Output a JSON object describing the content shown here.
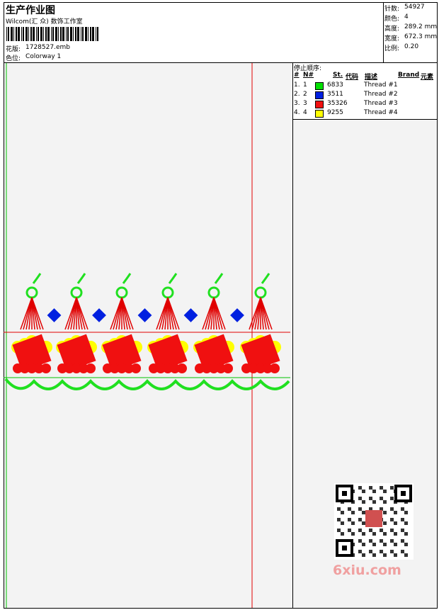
{
  "header": {
    "title": "生产作业图",
    "studio": "Wilcom(汇 众) 数饰工作室",
    "design_label": "花版:",
    "design_file": "1728527.emb",
    "colorway_label": "色位:",
    "colorway": "Colorway 1"
  },
  "specs": [
    {
      "label": "针数:",
      "value": "54927"
    },
    {
      "label": "颜色:",
      "value": "4"
    },
    {
      "label": "高度:",
      "value": "289.2 mm"
    },
    {
      "label": "宽度:",
      "value": "672.3 mm"
    },
    {
      "label": "比例:",
      "value": "0.20"
    }
  ],
  "stop_sequence": {
    "title": "停止顺序:",
    "headers": [
      "#",
      "N#",
      "St.",
      "代码",
      "描述",
      "Brand",
      "元素"
    ],
    "rows": [
      {
        "index": "1.",
        "n": "1",
        "color": "#00e000",
        "stitches": "6833",
        "description": "Thread #1"
      },
      {
        "index": "2.",
        "n": "2",
        "color": "#0020e0",
        "stitches": "3511",
        "description": "Thread #2"
      },
      {
        "index": "3.",
        "n": "3",
        "color": "#f01010",
        "stitches": "35326",
        "description": "Thread #3"
      },
      {
        "index": "4.",
        "n": "4",
        "color": "#ffff00",
        "stitches": "9255",
        "description": "Thread #4"
      }
    ]
  },
  "watermark": "6xiu.com"
}
